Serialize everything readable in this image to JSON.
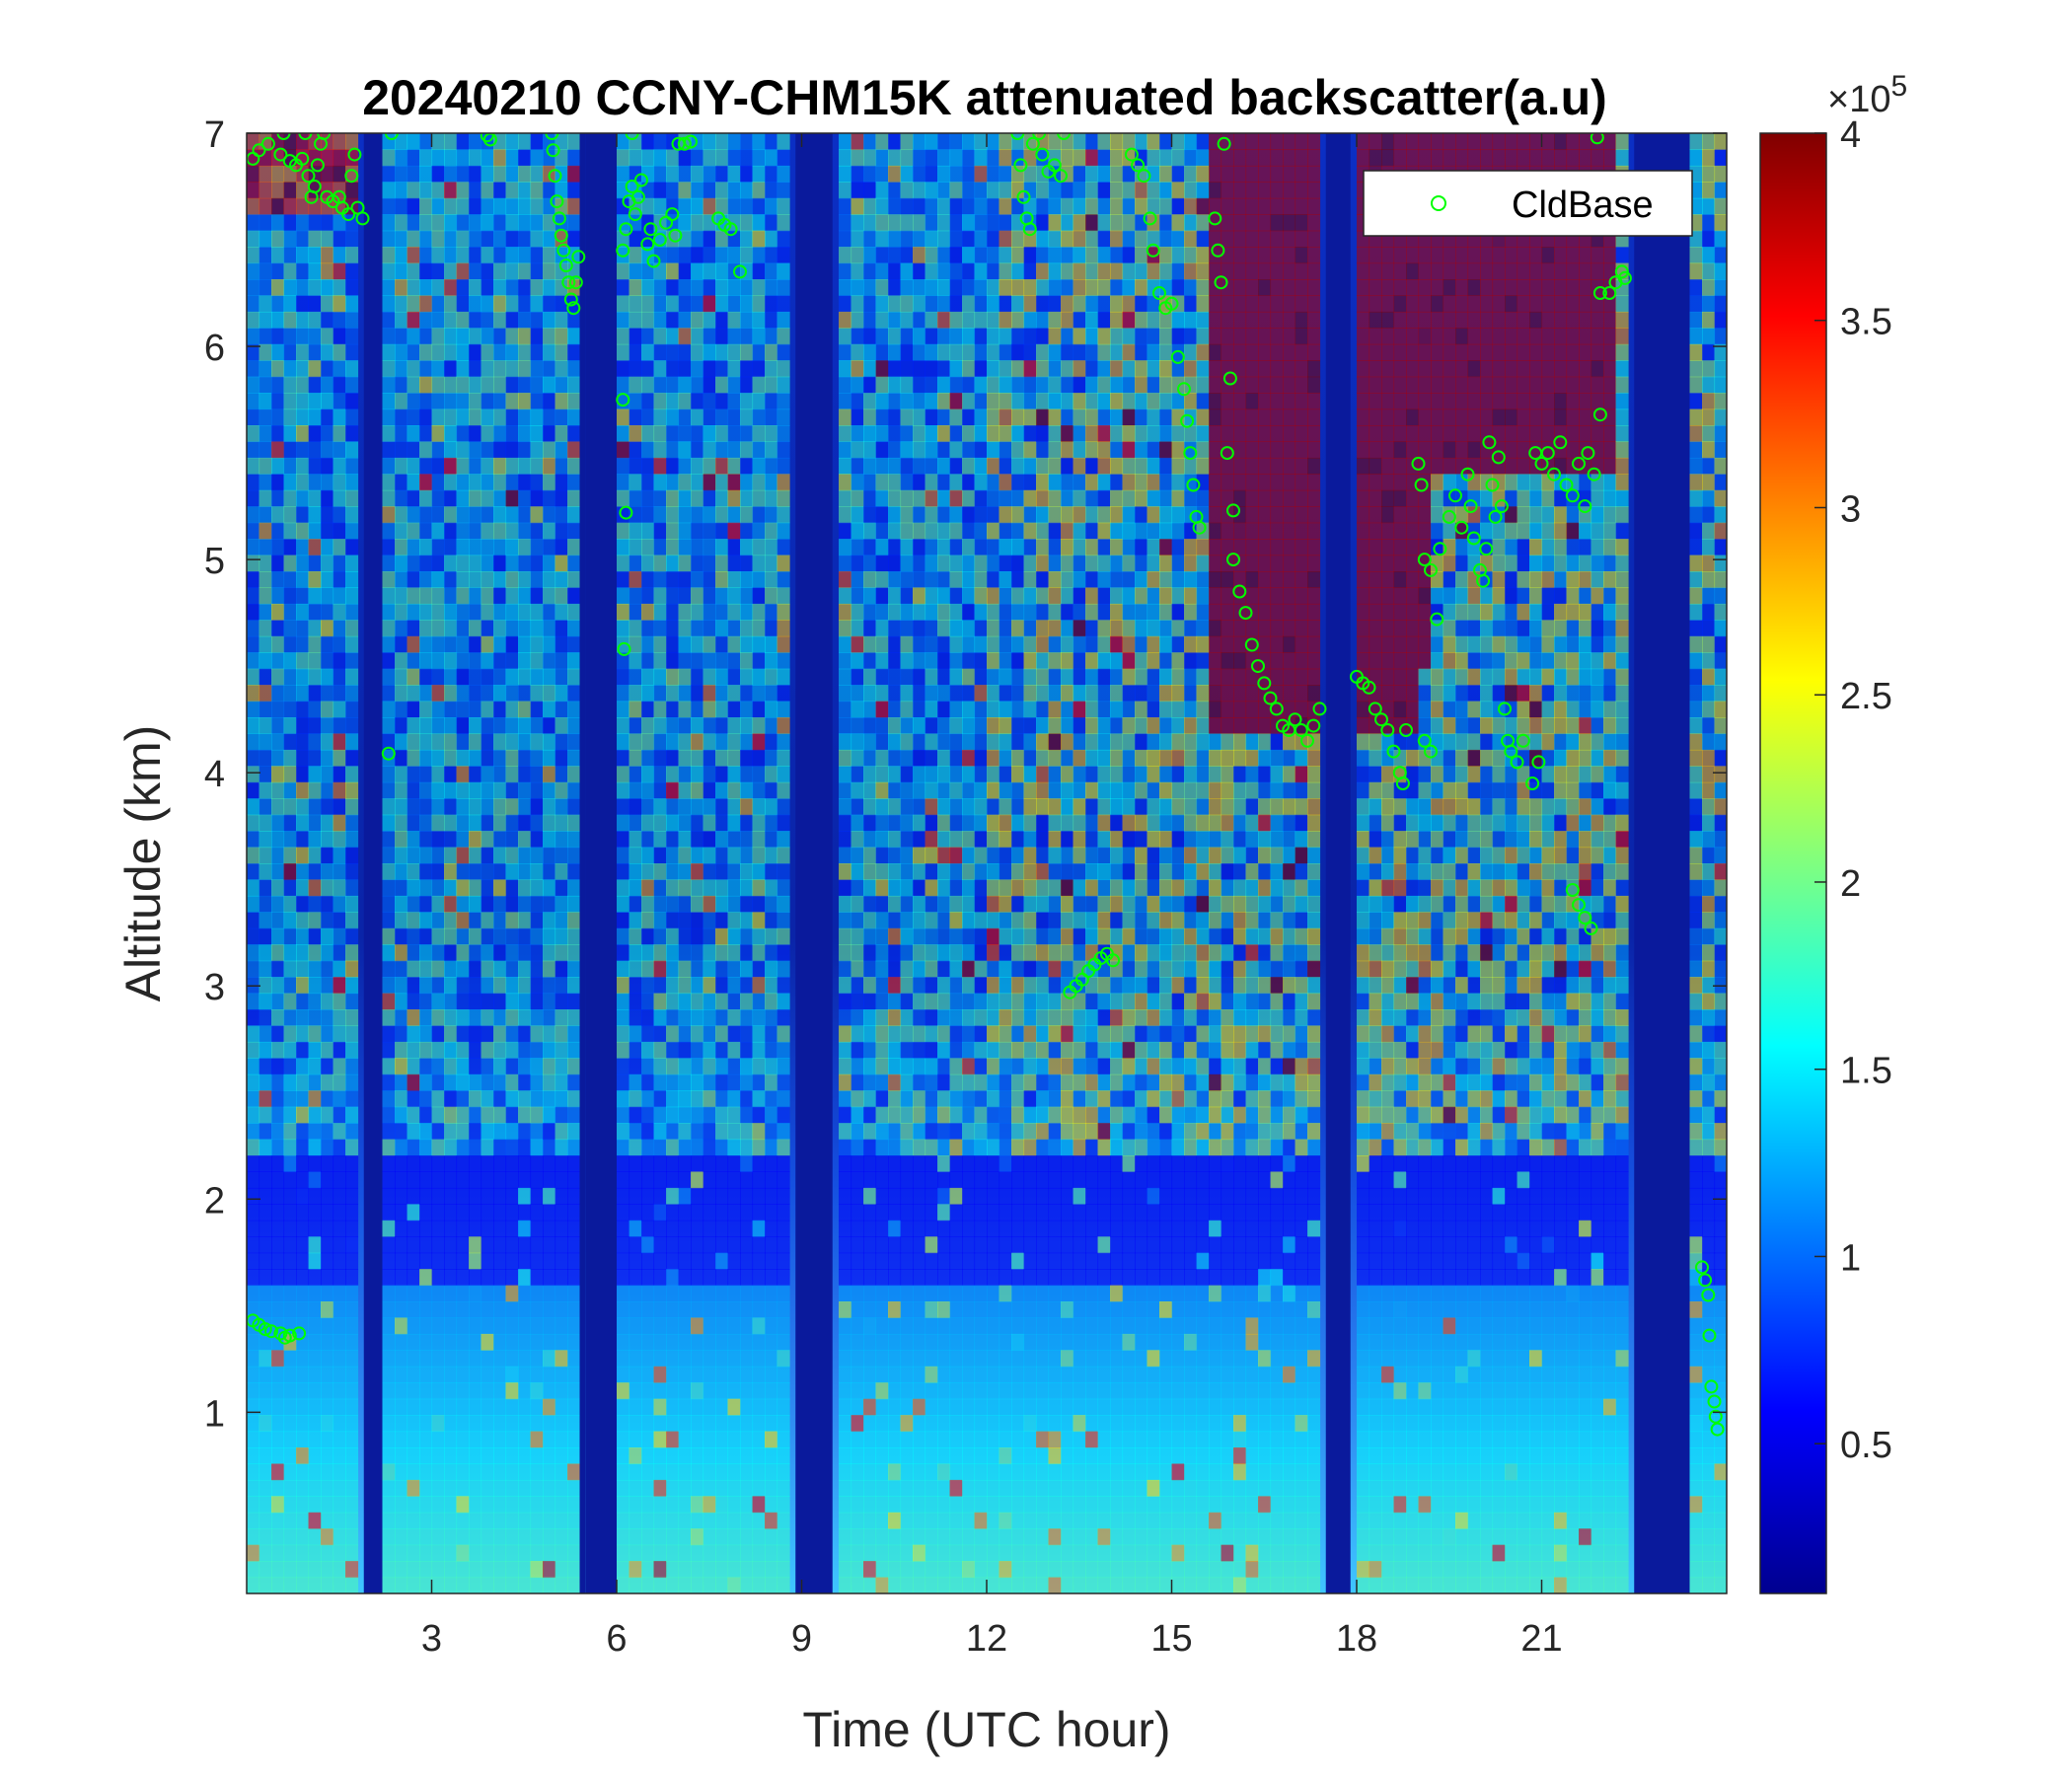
{
  "chart_data": {
    "type": "heatmap",
    "title": "20240210 CCNY-CHM15K attenuated backscatter(a.u)",
    "xlabel": "Time (UTC hour)",
    "ylabel": "Altitude (km)",
    "xlim": [
      0,
      24
    ],
    "ylim": [
      0.15,
      7
    ],
    "xticks": [
      3,
      6,
      9,
      12,
      15,
      18,
      21
    ],
    "yticks": [
      1,
      2,
      3,
      4,
      5,
      6,
      7
    ],
    "colorbar": {
      "colormap": "jet",
      "range": [
        0.1,
        4
      ],
      "ticks": [
        0.5,
        1,
        1.5,
        2,
        2.5,
        3,
        3.5,
        4
      ],
      "exponent_multiplier": "×10",
      "exponent_power": "5"
    },
    "data_gaps_utc_hour": [
      [
        1.9,
        2.2
      ],
      [
        5.4,
        5.5
      ],
      [
        5.5,
        6.0
      ],
      [
        8.9,
        9.5
      ],
      [
        17.5,
        17.9
      ],
      [
        22.5,
        23.4
      ]
    ],
    "series": [
      {
        "name": "CldBase",
        "marker": "circle",
        "color": "#00ff00",
        "points": [
          {
            "x": 0.1,
            "y": 1.43
          },
          {
            "x": 0.2,
            "y": 1.41
          },
          {
            "x": 0.3,
            "y": 1.39
          },
          {
            "x": 0.4,
            "y": 1.38
          },
          {
            "x": 0.55,
            "y": 1.37
          },
          {
            "x": 0.7,
            "y": 1.36
          },
          {
            "x": 0.85,
            "y": 1.37
          },
          {
            "x": 0.62,
            "y": 1.35
          },
          {
            "x": 0.1,
            "y": 6.88
          },
          {
            "x": 0.2,
            "y": 6.92
          },
          {
            "x": 0.35,
            "y": 6.95
          },
          {
            "x": 0.6,
            "y": 7.0
          },
          {
            "x": 0.55,
            "y": 6.9
          },
          {
            "x": 0.7,
            "y": 6.87
          },
          {
            "x": 0.8,
            "y": 6.85
          },
          {
            "x": 0.9,
            "y": 6.88
          },
          {
            "x": 0.95,
            "y": 7.0
          },
          {
            "x": 1.0,
            "y": 6.8
          },
          {
            "x": 1.05,
            "y": 6.7
          },
          {
            "x": 1.1,
            "y": 6.75
          },
          {
            "x": 1.15,
            "y": 6.85
          },
          {
            "x": 1.2,
            "y": 6.95
          },
          {
            "x": 1.25,
            "y": 7.0
          },
          {
            "x": 1.3,
            "y": 6.7
          },
          {
            "x": 1.4,
            "y": 6.68
          },
          {
            "x": 1.5,
            "y": 6.7
          },
          {
            "x": 1.55,
            "y": 6.65
          },
          {
            "x": 1.65,
            "y": 6.62
          },
          {
            "x": 1.7,
            "y": 6.8
          },
          {
            "x": 1.75,
            "y": 6.9
          },
          {
            "x": 1.8,
            "y": 6.65
          },
          {
            "x": 1.88,
            "y": 6.6
          },
          {
            "x": 2.35,
            "y": 7.0
          },
          {
            "x": 2.3,
            "y": 4.09
          },
          {
            "x": 3.9,
            "y": 6.99
          },
          {
            "x": 3.95,
            "y": 6.97
          },
          {
            "x": 4.95,
            "y": 7.0
          },
          {
            "x": 4.97,
            "y": 6.92
          },
          {
            "x": 5.0,
            "y": 6.8
          },
          {
            "x": 5.03,
            "y": 6.68
          },
          {
            "x": 5.07,
            "y": 6.6
          },
          {
            "x": 5.1,
            "y": 6.52
          },
          {
            "x": 5.14,
            "y": 6.45
          },
          {
            "x": 5.18,
            "y": 6.38
          },
          {
            "x": 5.22,
            "y": 6.3
          },
          {
            "x": 5.26,
            "y": 6.22
          },
          {
            "x": 5.3,
            "y": 6.18
          },
          {
            "x": 5.34,
            "y": 6.3
          },
          {
            "x": 5.38,
            "y": 6.42
          },
          {
            "x": 6.1,
            "y": 6.45
          },
          {
            "x": 6.15,
            "y": 6.55
          },
          {
            "x": 6.2,
            "y": 6.68
          },
          {
            "x": 6.25,
            "y": 6.75
          },
          {
            "x": 6.3,
            "y": 6.62
          },
          {
            "x": 6.35,
            "y": 6.7
          },
          {
            "x": 6.4,
            "y": 6.78
          },
          {
            "x": 6.5,
            "y": 6.48
          },
          {
            "x": 6.55,
            "y": 6.55
          },
          {
            "x": 6.6,
            "y": 6.4
          },
          {
            "x": 6.7,
            "y": 6.5
          },
          {
            "x": 6.8,
            "y": 6.58
          },
          {
            "x": 6.9,
            "y": 6.62
          },
          {
            "x": 6.95,
            "y": 6.52
          },
          {
            "x": 7.0,
            "y": 6.95
          },
          {
            "x": 7.1,
            "y": 6.95
          },
          {
            "x": 7.2,
            "y": 6.96
          },
          {
            "x": 6.25,
            "y": 7.0
          },
          {
            "x": 6.1,
            "y": 5.75
          },
          {
            "x": 6.15,
            "y": 5.22
          },
          {
            "x": 6.12,
            "y": 4.58
          },
          {
            "x": 7.65,
            "y": 6.6
          },
          {
            "x": 7.75,
            "y": 6.57
          },
          {
            "x": 7.85,
            "y": 6.55
          },
          {
            "x": 8.0,
            "y": 6.35
          },
          {
            "x": 12.5,
            "y": 7.0
          },
          {
            "x": 12.55,
            "y": 6.85
          },
          {
            "x": 12.6,
            "y": 6.7
          },
          {
            "x": 12.65,
            "y": 6.6
          },
          {
            "x": 12.7,
            "y": 6.55
          },
          {
            "x": 12.75,
            "y": 6.95
          },
          {
            "x": 12.85,
            "y": 7.0
          },
          {
            "x": 12.9,
            "y": 6.9
          },
          {
            "x": 13.0,
            "y": 6.82
          },
          {
            "x": 13.1,
            "y": 6.85
          },
          {
            "x": 13.2,
            "y": 6.8
          },
          {
            "x": 13.25,
            "y": 7.0
          },
          {
            "x": 13.35,
            "y": 2.97
          },
          {
            "x": 13.45,
            "y": 3.0
          },
          {
            "x": 13.55,
            "y": 3.03
          },
          {
            "x": 13.65,
            "y": 3.07
          },
          {
            "x": 13.75,
            "y": 3.1
          },
          {
            "x": 13.85,
            "y": 3.13
          },
          {
            "x": 13.95,
            "y": 3.15
          },
          {
            "x": 14.05,
            "y": 3.12
          },
          {
            "x": 14.35,
            "y": 6.9
          },
          {
            "x": 14.45,
            "y": 6.85
          },
          {
            "x": 14.55,
            "y": 6.8
          },
          {
            "x": 14.65,
            "y": 6.6
          },
          {
            "x": 14.7,
            "y": 6.45
          },
          {
            "x": 14.8,
            "y": 6.25
          },
          {
            "x": 14.9,
            "y": 6.18
          },
          {
            "x": 15.0,
            "y": 6.2
          },
          {
            "x": 15.1,
            "y": 5.95
          },
          {
            "x": 15.2,
            "y": 5.8
          },
          {
            "x": 15.25,
            "y": 5.65
          },
          {
            "x": 15.3,
            "y": 5.5
          },
          {
            "x": 15.35,
            "y": 5.35
          },
          {
            "x": 15.4,
            "y": 5.2
          },
          {
            "x": 15.45,
            "y": 5.15
          },
          {
            "x": 15.7,
            "y": 6.6
          },
          {
            "x": 15.75,
            "y": 6.45
          },
          {
            "x": 15.8,
            "y": 6.3
          },
          {
            "x": 15.85,
            "y": 6.95
          },
          {
            "x": 15.9,
            "y": 5.5
          },
          {
            "x": 15.95,
            "y": 5.85
          },
          {
            "x": 16.0,
            "y": 5.23
          },
          {
            "x": 16.0,
            "y": 5.0
          },
          {
            "x": 16.1,
            "y": 4.85
          },
          {
            "x": 16.2,
            "y": 4.75
          },
          {
            "x": 16.3,
            "y": 4.6
          },
          {
            "x": 16.4,
            "y": 4.5
          },
          {
            "x": 16.5,
            "y": 4.42
          },
          {
            "x": 16.6,
            "y": 4.35
          },
          {
            "x": 16.7,
            "y": 4.3
          },
          {
            "x": 16.8,
            "y": 4.22
          },
          {
            "x": 16.9,
            "y": 4.2
          },
          {
            "x": 17.0,
            "y": 4.25
          },
          {
            "x": 17.1,
            "y": 4.2
          },
          {
            "x": 17.2,
            "y": 4.15
          },
          {
            "x": 17.3,
            "y": 4.22
          },
          {
            "x": 17.4,
            "y": 4.3
          },
          {
            "x": 18.0,
            "y": 4.45
          },
          {
            "x": 18.1,
            "y": 4.42
          },
          {
            "x": 18.2,
            "y": 4.4
          },
          {
            "x": 18.3,
            "y": 4.3
          },
          {
            "x": 18.4,
            "y": 4.25
          },
          {
            "x": 18.5,
            "y": 4.2
          },
          {
            "x": 18.6,
            "y": 4.1
          },
          {
            "x": 18.7,
            "y": 4.0
          },
          {
            "x": 18.75,
            "y": 3.95
          },
          {
            "x": 18.8,
            "y": 4.2
          },
          {
            "x": 19.1,
            "y": 4.15
          },
          {
            "x": 19.2,
            "y": 4.1
          },
          {
            "x": 19.3,
            "y": 4.72
          },
          {
            "x": 19.0,
            "y": 5.45
          },
          {
            "x": 19.05,
            "y": 5.35
          },
          {
            "x": 19.1,
            "y": 5.0
          },
          {
            "x": 19.2,
            "y": 4.95
          },
          {
            "x": 19.35,
            "y": 5.05
          },
          {
            "x": 19.5,
            "y": 5.2
          },
          {
            "x": 19.6,
            "y": 5.3
          },
          {
            "x": 19.7,
            "y": 5.15
          },
          {
            "x": 19.8,
            "y": 5.4
          },
          {
            "x": 19.85,
            "y": 5.25
          },
          {
            "x": 19.9,
            "y": 5.1
          },
          {
            "x": 20.0,
            "y": 4.95
          },
          {
            "x": 20.05,
            "y": 4.9
          },
          {
            "x": 20.1,
            "y": 5.05
          },
          {
            "x": 20.15,
            "y": 5.55
          },
          {
            "x": 20.2,
            "y": 5.35
          },
          {
            "x": 20.25,
            "y": 5.2
          },
          {
            "x": 20.3,
            "y": 5.48
          },
          {
            "x": 20.35,
            "y": 5.25
          },
          {
            "x": 20.4,
            "y": 4.3
          },
          {
            "x": 20.45,
            "y": 4.15
          },
          {
            "x": 20.5,
            "y": 4.1
          },
          {
            "x": 20.6,
            "y": 4.05
          },
          {
            "x": 20.7,
            "y": 4.15
          },
          {
            "x": 20.85,
            "y": 3.95
          },
          {
            "x": 20.95,
            "y": 4.05
          },
          {
            "x": 20.9,
            "y": 5.5
          },
          {
            "x": 21.0,
            "y": 5.45
          },
          {
            "x": 21.1,
            "y": 5.5
          },
          {
            "x": 21.2,
            "y": 5.4
          },
          {
            "x": 21.3,
            "y": 5.55
          },
          {
            "x": 21.4,
            "y": 5.35
          },
          {
            "x": 21.5,
            "y": 5.3
          },
          {
            "x": 21.6,
            "y": 5.45
          },
          {
            "x": 21.7,
            "y": 5.25
          },
          {
            "x": 21.75,
            "y": 5.5
          },
          {
            "x": 21.85,
            "y": 5.4
          },
          {
            "x": 21.95,
            "y": 5.68
          },
          {
            "x": 21.5,
            "y": 3.45
          },
          {
            "x": 21.6,
            "y": 3.38
          },
          {
            "x": 21.7,
            "y": 3.32
          },
          {
            "x": 21.8,
            "y": 3.27
          },
          {
            "x": 21.9,
            "y": 6.98
          },
          {
            "x": 21.95,
            "y": 6.25
          },
          {
            "x": 22.1,
            "y": 6.25
          },
          {
            "x": 22.2,
            "y": 6.3
          },
          {
            "x": 22.3,
            "y": 6.35
          },
          {
            "x": 22.35,
            "y": 6.32
          },
          {
            "x": 23.6,
            "y": 1.68
          },
          {
            "x": 23.65,
            "y": 1.62
          },
          {
            "x": 23.7,
            "y": 1.55
          },
          {
            "x": 23.72,
            "y": 1.36
          },
          {
            "x": 23.75,
            "y": 1.12
          },
          {
            "x": 23.8,
            "y": 1.05
          },
          {
            "x": 23.82,
            "y": 0.98
          },
          {
            "x": 23.85,
            "y": 0.92
          }
        ]
      }
    ],
    "legend": {
      "position": "top-right",
      "entries": [
        "CldBase"
      ]
    }
  }
}
